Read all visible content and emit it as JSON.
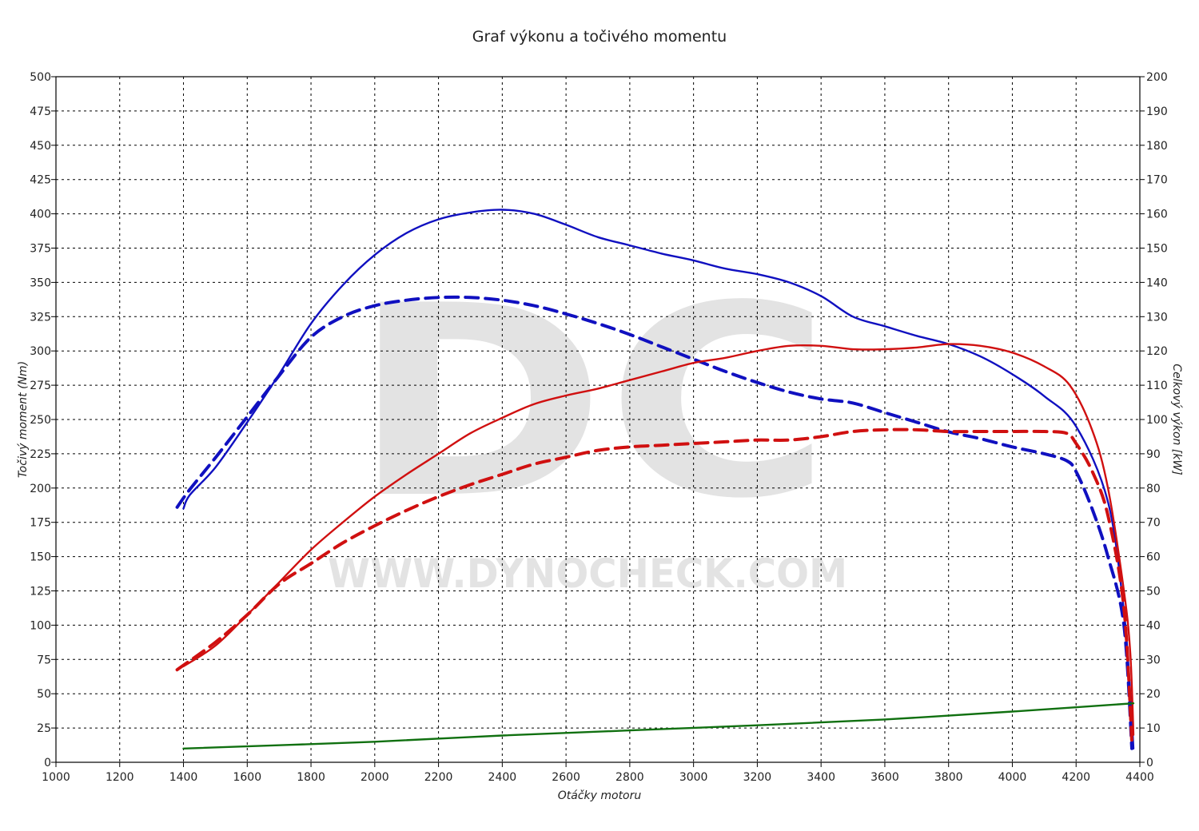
{
  "chart_data": {
    "type": "line",
    "title": "Graf výkonu a točivého momentu",
    "xlabel": "Otáčky motoru",
    "ylabel": "Točivý moment (Nm)",
    "y2label": "Celkový výkon [kW]",
    "xlim": [
      1000,
      4400
    ],
    "ylim": [
      0,
      500
    ],
    "y2lim": [
      0,
      200
    ],
    "xticks": [
      1000,
      1200,
      1400,
      1600,
      1800,
      2000,
      2200,
      2400,
      2600,
      2800,
      3000,
      3200,
      3400,
      3600,
      3800,
      4000,
      4200,
      4400
    ],
    "yticks": [
      0,
      25,
      50,
      75,
      100,
      125,
      150,
      175,
      200,
      225,
      250,
      275,
      300,
      325,
      350,
      375,
      400,
      425,
      450,
      475,
      500
    ],
    "y2ticks": [
      0,
      10,
      20,
      30,
      40,
      50,
      60,
      70,
      80,
      90,
      100,
      110,
      120,
      130,
      140,
      150,
      160,
      170,
      180,
      190,
      200
    ],
    "grid": true,
    "watermark": {
      "logo": "DC",
      "text": "WWW.DYNOCHECK.COM"
    },
    "series": [
      {
        "axis": "left",
        "color": "#1010c0",
        "style": "solid",
        "points": [
          [
            1400,
            185
          ],
          [
            1420,
            195
          ],
          [
            1500,
            215
          ],
          [
            1600,
            248
          ],
          [
            1700,
            283
          ],
          [
            1800,
            320
          ],
          [
            1900,
            348
          ],
          [
            2000,
            370
          ],
          [
            2100,
            386
          ],
          [
            2200,
            396
          ],
          [
            2300,
            401
          ],
          [
            2400,
            403
          ],
          [
            2500,
            400
          ],
          [
            2600,
            392
          ],
          [
            2700,
            383
          ],
          [
            2800,
            377
          ],
          [
            2900,
            371
          ],
          [
            3000,
            366
          ],
          [
            3100,
            360
          ],
          [
            3200,
            356
          ],
          [
            3300,
            350
          ],
          [
            3400,
            340
          ],
          [
            3500,
            325
          ],
          [
            3600,
            318
          ],
          [
            3700,
            311
          ],
          [
            3800,
            305
          ],
          [
            3900,
            296
          ],
          [
            4000,
            283
          ],
          [
            4100,
            267
          ],
          [
            4200,
            245
          ],
          [
            4300,
            190
          ],
          [
            4350,
            110
          ],
          [
            4370,
            50
          ],
          [
            4380,
            10
          ]
        ]
      },
      {
        "axis": "left",
        "color": "#1010c0",
        "style": "dashed",
        "points": [
          [
            1380,
            186
          ],
          [
            1420,
            199
          ],
          [
            1500,
            222
          ],
          [
            1600,
            252
          ],
          [
            1700,
            282
          ],
          [
            1800,
            310
          ],
          [
            1900,
            325
          ],
          [
            2000,
            333
          ],
          [
            2100,
            337
          ],
          [
            2200,
            339
          ],
          [
            2300,
            339
          ],
          [
            2400,
            337
          ],
          [
            2500,
            333
          ],
          [
            2600,
            327
          ],
          [
            2700,
            320
          ],
          [
            2800,
            312
          ],
          [
            2900,
            303
          ],
          [
            3000,
            294
          ],
          [
            3100,
            285
          ],
          [
            3200,
            277
          ],
          [
            3300,
            270
          ],
          [
            3400,
            265
          ],
          [
            3500,
            262
          ],
          [
            3600,
            255
          ],
          [
            3700,
            248
          ],
          [
            3800,
            241
          ],
          [
            3900,
            236
          ],
          [
            4000,
            230
          ],
          [
            4100,
            225
          ],
          [
            4170,
            220
          ],
          [
            4200,
            212
          ],
          [
            4250,
            185
          ],
          [
            4300,
            150
          ],
          [
            4350,
            100
          ],
          [
            4375,
            10
          ]
        ]
      },
      {
        "axis": "right",
        "color": "#d01010",
        "style": "solid",
        "points": [
          [
            1400,
            28
          ],
          [
            1500,
            34
          ],
          [
            1600,
            43
          ],
          [
            1700,
            52.5
          ],
          [
            1800,
            62
          ],
          [
            1900,
            70
          ],
          [
            2000,
            77.5
          ],
          [
            2100,
            84
          ],
          [
            2200,
            90
          ],
          [
            2300,
            96
          ],
          [
            2400,
            100.5
          ],
          [
            2500,
            104.5
          ],
          [
            2600,
            107
          ],
          [
            2700,
            109
          ],
          [
            2800,
            111.5
          ],
          [
            2900,
            114
          ],
          [
            3000,
            116.5
          ],
          [
            3100,
            118
          ],
          [
            3200,
            120
          ],
          [
            3300,
            121.5
          ],
          [
            3400,
            121.5
          ],
          [
            3500,
            120.5
          ],
          [
            3600,
            120.5
          ],
          [
            3700,
            121
          ],
          [
            3800,
            122
          ],
          [
            3900,
            121.5
          ],
          [
            4000,
            119.5
          ],
          [
            4100,
            115.5
          ],
          [
            4180,
            110
          ],
          [
            4250,
            97
          ],
          [
            4300,
            80
          ],
          [
            4350,
            50
          ],
          [
            4370,
            32
          ],
          [
            4380,
            8
          ]
        ]
      },
      {
        "axis": "right",
        "color": "#d01010",
        "style": "dashed",
        "points": [
          [
            1380,
            27
          ],
          [
            1500,
            35
          ],
          [
            1600,
            43
          ],
          [
            1700,
            52
          ],
          [
            1800,
            58
          ],
          [
            1900,
            64
          ],
          [
            2000,
            69
          ],
          [
            2100,
            73.5
          ],
          [
            2200,
            77.5
          ],
          [
            2300,
            81
          ],
          [
            2400,
            84
          ],
          [
            2500,
            87
          ],
          [
            2600,
            89
          ],
          [
            2700,
            91
          ],
          [
            2800,
            92
          ],
          [
            2900,
            92.5
          ],
          [
            3000,
            93
          ],
          [
            3100,
            93.5
          ],
          [
            3200,
            94
          ],
          [
            3300,
            94
          ],
          [
            3400,
            95
          ],
          [
            3500,
            96.5
          ],
          [
            3600,
            97
          ],
          [
            3700,
            97
          ],
          [
            3800,
            96.5
          ],
          [
            3900,
            96.5
          ],
          [
            4000,
            96.5
          ],
          [
            4100,
            96.5
          ],
          [
            4170,
            96
          ],
          [
            4200,
            93
          ],
          [
            4250,
            85
          ],
          [
            4300,
            72
          ],
          [
            4350,
            45
          ],
          [
            4375,
            6
          ]
        ]
      },
      {
        "axis": "right",
        "color": "#107010",
        "style": "solid",
        "points": [
          [
            1400,
            4
          ],
          [
            2000,
            6
          ],
          [
            2400,
            7.8
          ],
          [
            2800,
            9.3
          ],
          [
            3200,
            10.8
          ],
          [
            3600,
            12.5
          ],
          [
            4000,
            14.8
          ],
          [
            4380,
            17.2
          ]
        ]
      }
    ]
  }
}
